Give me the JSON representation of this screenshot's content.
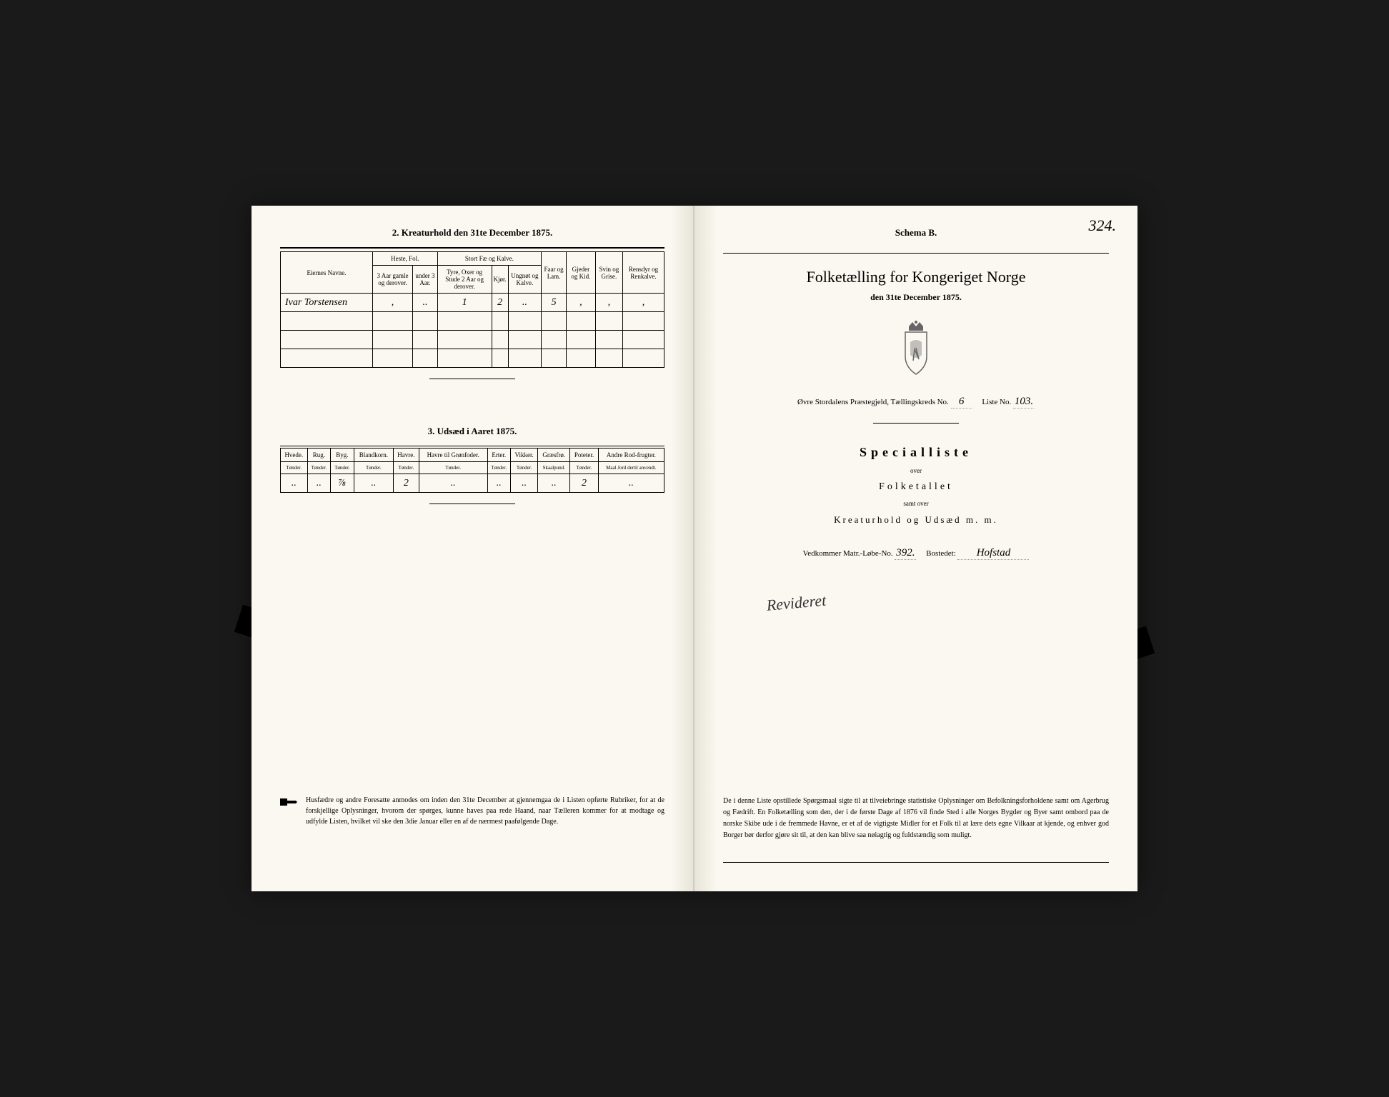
{
  "left_page": {
    "section2_title": "2.  Kreaturhold den 31te December 1875.",
    "table2": {
      "col_owners": "Eiernes Navne.",
      "group_heste": "Heste, Fol.",
      "heste_sub1": "3 Aar gamle og derover.",
      "heste_sub2": "under 3 Aar.",
      "group_stort": "Stort Fæ og Kalve.",
      "stort_sub1": "Tyre, Oxer og Stude 2 Aar og derover.",
      "stort_sub2": "Kjør.",
      "stort_sub3": "Ungnøt og Kalve.",
      "col_faar": "Faar og Lam.",
      "col_gjeder": "Gjeder og Kid.",
      "col_svin": "Svin og Grise.",
      "col_rensdyr": "Rensdyr og Renkalve.",
      "row1": {
        "owner": "Ivar Torstensen",
        "heste1": ",",
        "heste2": "..",
        "stort1": "1",
        "stort2": "2",
        "stort3": "..",
        "faar": "5",
        "gjeder": ",",
        "svin": ",",
        "rensdyr": ","
      }
    },
    "section3_title": "3.  Udsæd i Aaret 1875.",
    "table3": {
      "cols": [
        {
          "h1": "Hvede.",
          "h2": "Tønder."
        },
        {
          "h1": "Rug.",
          "h2": "Tønder."
        },
        {
          "h1": "Byg.",
          "h2": "Tønder."
        },
        {
          "h1": "Blandkorn.",
          "h2": "Tønder."
        },
        {
          "h1": "Havre.",
          "h2": "Tønder."
        },
        {
          "h1": "Havre til Grønfoder.",
          "h2": "Tønder."
        },
        {
          "h1": "Erter.",
          "h2": "Tønder."
        },
        {
          "h1": "Vikker.",
          "h2": "Tønder."
        },
        {
          "h1": "Græsfrø.",
          "h2": "Skaalpund."
        },
        {
          "h1": "Poteter.",
          "h2": "Tønder."
        },
        {
          "h1": "Andre Rod-frugter.",
          "h2": "Maal Jord dertil anvendt."
        }
      ],
      "row": [
        "..",
        "..",
        "⅞",
        "..",
        "2",
        "..",
        "..",
        "..",
        "..",
        "2",
        ".."
      ]
    },
    "footnote": "Husfædre og andre Foresatte anmodes om inden den 31te December at gjennemgaa de i Listen opførte Rubriker, for at de forskjellige Oplysninger, hvorom der spørges, kunne haves paa rede Haand, naar Tælleren kommer for at modtage og udfylde Listen, hvilket vil ske den 3die Januar eller en af de nærmest paafølgende Dage."
  },
  "right_page": {
    "schema_label": "Schema B.",
    "page_number": "324.",
    "main_title": "Folketælling for Kongeriget Norge",
    "date_line": "den 31te December 1875.",
    "parish_label": "Øvre Stordalens  Præstegjeld,  Tællingskreds No.",
    "kreds_no": "6",
    "liste_label": "Liste No.",
    "liste_no": "103.",
    "special_title": "Specialliste",
    "over": "over",
    "folketallet": "Folketallet",
    "samt_over": "samt over",
    "kreatur_line": "Kreaturhold og Udsæd m. m.",
    "vedkommer_label": "Vedkommer Matr.-Løbe-No.",
    "matr_no": "392.",
    "bostedet_label": "Bostedet:",
    "bostedet_val": "Hofstad",
    "revised": "Revideret",
    "bottom_para": "De i denne Liste opstillede Spørgsmaal sigte til at tilveiebringe statistiske Oplysninger om Befolkningsforholdene samt om Agerbrug og Fædrift.  En Folketælling som den, der i de første Dage af 1876 vil finde Sted i alle Norges Bygder og Byer samt ombord paa de norske Skibe ude i de fremmede Havne, er et af de vigtigste Midler for et Folk til at lære dets egne Vilkaar at kjende, og enhver god Borger bør derfor gjøre sit til, at den kan blive saa nøiagtig og fuldstændig som muligt."
  },
  "colors": {
    "page_bg": "#faf8f0",
    "ink": "#000000",
    "book_bg": "#1a1a1a"
  }
}
